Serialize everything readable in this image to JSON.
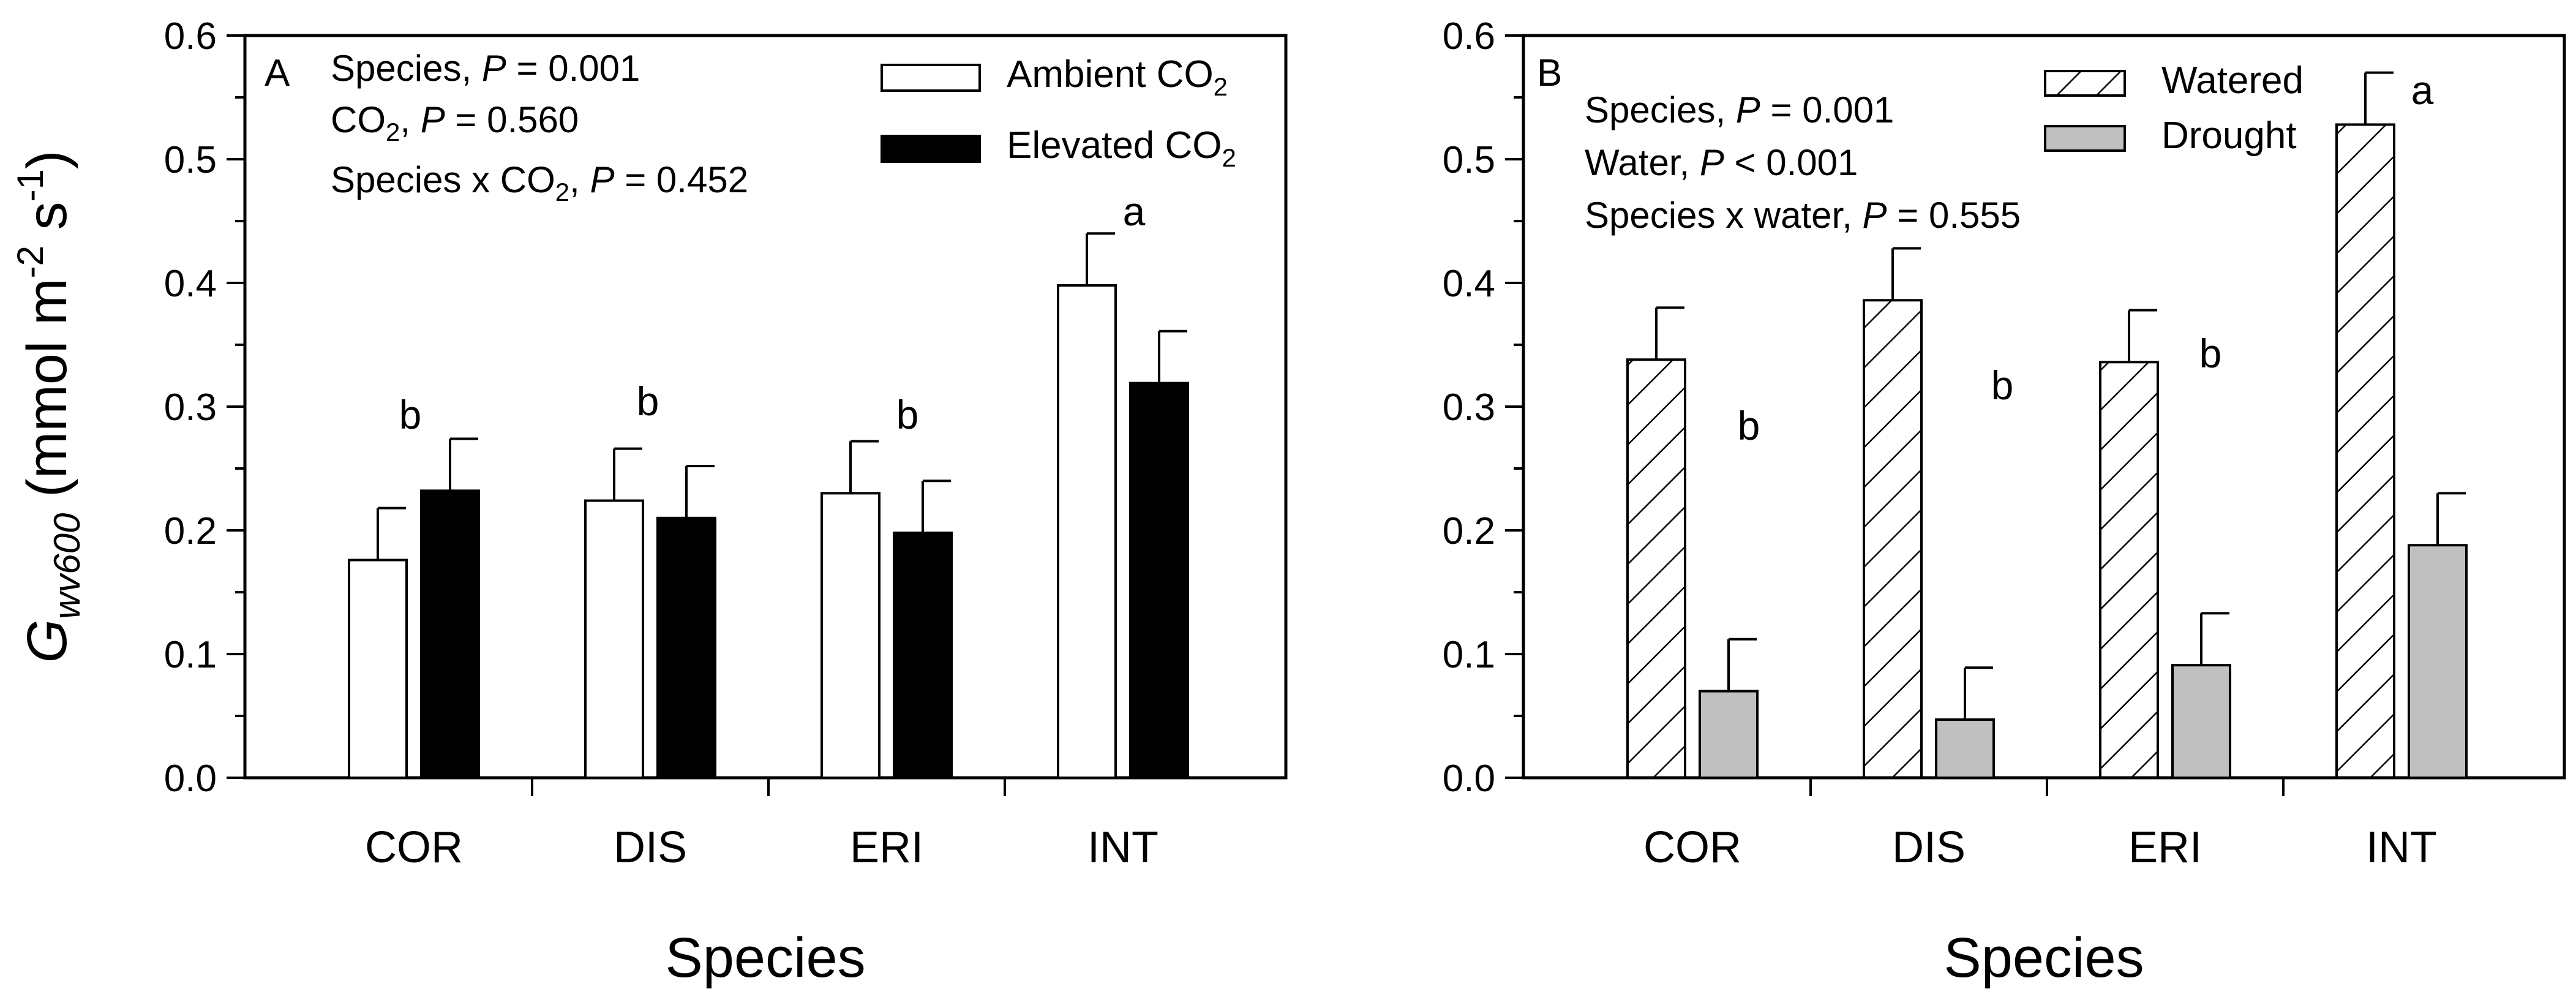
{
  "chart_data": [
    {
      "type": "bar",
      "panel": "A",
      "categories": [
        "COR",
        "DIS",
        "ERI",
        "INT"
      ],
      "series": [
        {
          "name": "Ambient CO2",
          "fill": "white",
          "values": [
            0.176,
            0.224,
            0.23,
            0.398
          ],
          "errors": [
            0.042,
            0.042,
            0.042,
            0.042
          ]
        },
        {
          "name": "Elevated CO2",
          "fill": "black",
          "values": [
            0.232,
            0.21,
            0.198,
            0.319
          ],
          "errors": [
            0.042,
            0.042,
            0.042,
            0.042
          ]
        }
      ],
      "group_labels": [
        "b",
        "b",
        "b",
        "a"
      ],
      "annotations": [
        {
          "prefix": "Species, ",
          "ital": "P",
          "suffix": " = 0.001"
        },
        {
          "prefix": "CO",
          "sub": "2",
          "mid": ", ",
          "ital": "P",
          "suffix": "  = 0.560"
        },
        {
          "prefix": "Species x CO",
          "sub": "2",
          "mid": ", ",
          "ital": "P",
          "suffix": " = 0.452"
        }
      ],
      "legend": [
        {
          "base": "Ambient CO",
          "sub": "2"
        },
        {
          "base": "Elevated CO",
          "sub": "2"
        }
      ],
      "xlabel": "Species",
      "ylabel": {
        "g": "G",
        "sub": "wv600",
        "unit": " (mmol m",
        "exp1": "-2",
        "mid": " s",
        "exp2": "-1",
        "close": ")"
      },
      "ylim": [
        0,
        0.6
      ],
      "yticks": [
        "0.0",
        "0.1",
        "0.2",
        "0.3",
        "0.4",
        "0.5",
        "0.6"
      ]
    },
    {
      "type": "bar",
      "panel": "B",
      "categories": [
        "COR",
        "DIS",
        "ERI",
        "INT"
      ],
      "series": [
        {
          "name": "Watered",
          "fill": "hatched",
          "values": [
            0.338,
            0.386,
            0.336,
            0.528
          ],
          "errors": [
            0.042,
            0.042,
            0.042,
            0.042
          ]
        },
        {
          "name": "Drought",
          "fill": "#c0c0c0",
          "values": [
            0.07,
            0.047,
            0.091,
            0.188
          ],
          "errors": [
            0.042,
            0.042,
            0.042,
            0.042
          ]
        }
      ],
      "group_labels": [
        "b",
        "b",
        "b",
        "a"
      ],
      "annotations": [
        {
          "prefix": "Species, ",
          "ital": "P",
          "suffix": " = 0.001"
        },
        {
          "prefix": "Water, ",
          "ital": "P",
          "suffix": " < 0.001"
        },
        {
          "prefix": "Species x water, ",
          "ital": "P",
          "suffix": " = 0.555"
        }
      ],
      "legend": [
        {
          "base": "Watered",
          "sub": ""
        },
        {
          "base": "Drought",
          "sub": ""
        }
      ],
      "xlabel": "Species",
      "ylim": [
        0,
        0.6
      ],
      "yticks": [
        "0.0",
        "0.1",
        "0.2",
        "0.3",
        "0.4",
        "0.5",
        "0.6"
      ]
    }
  ]
}
